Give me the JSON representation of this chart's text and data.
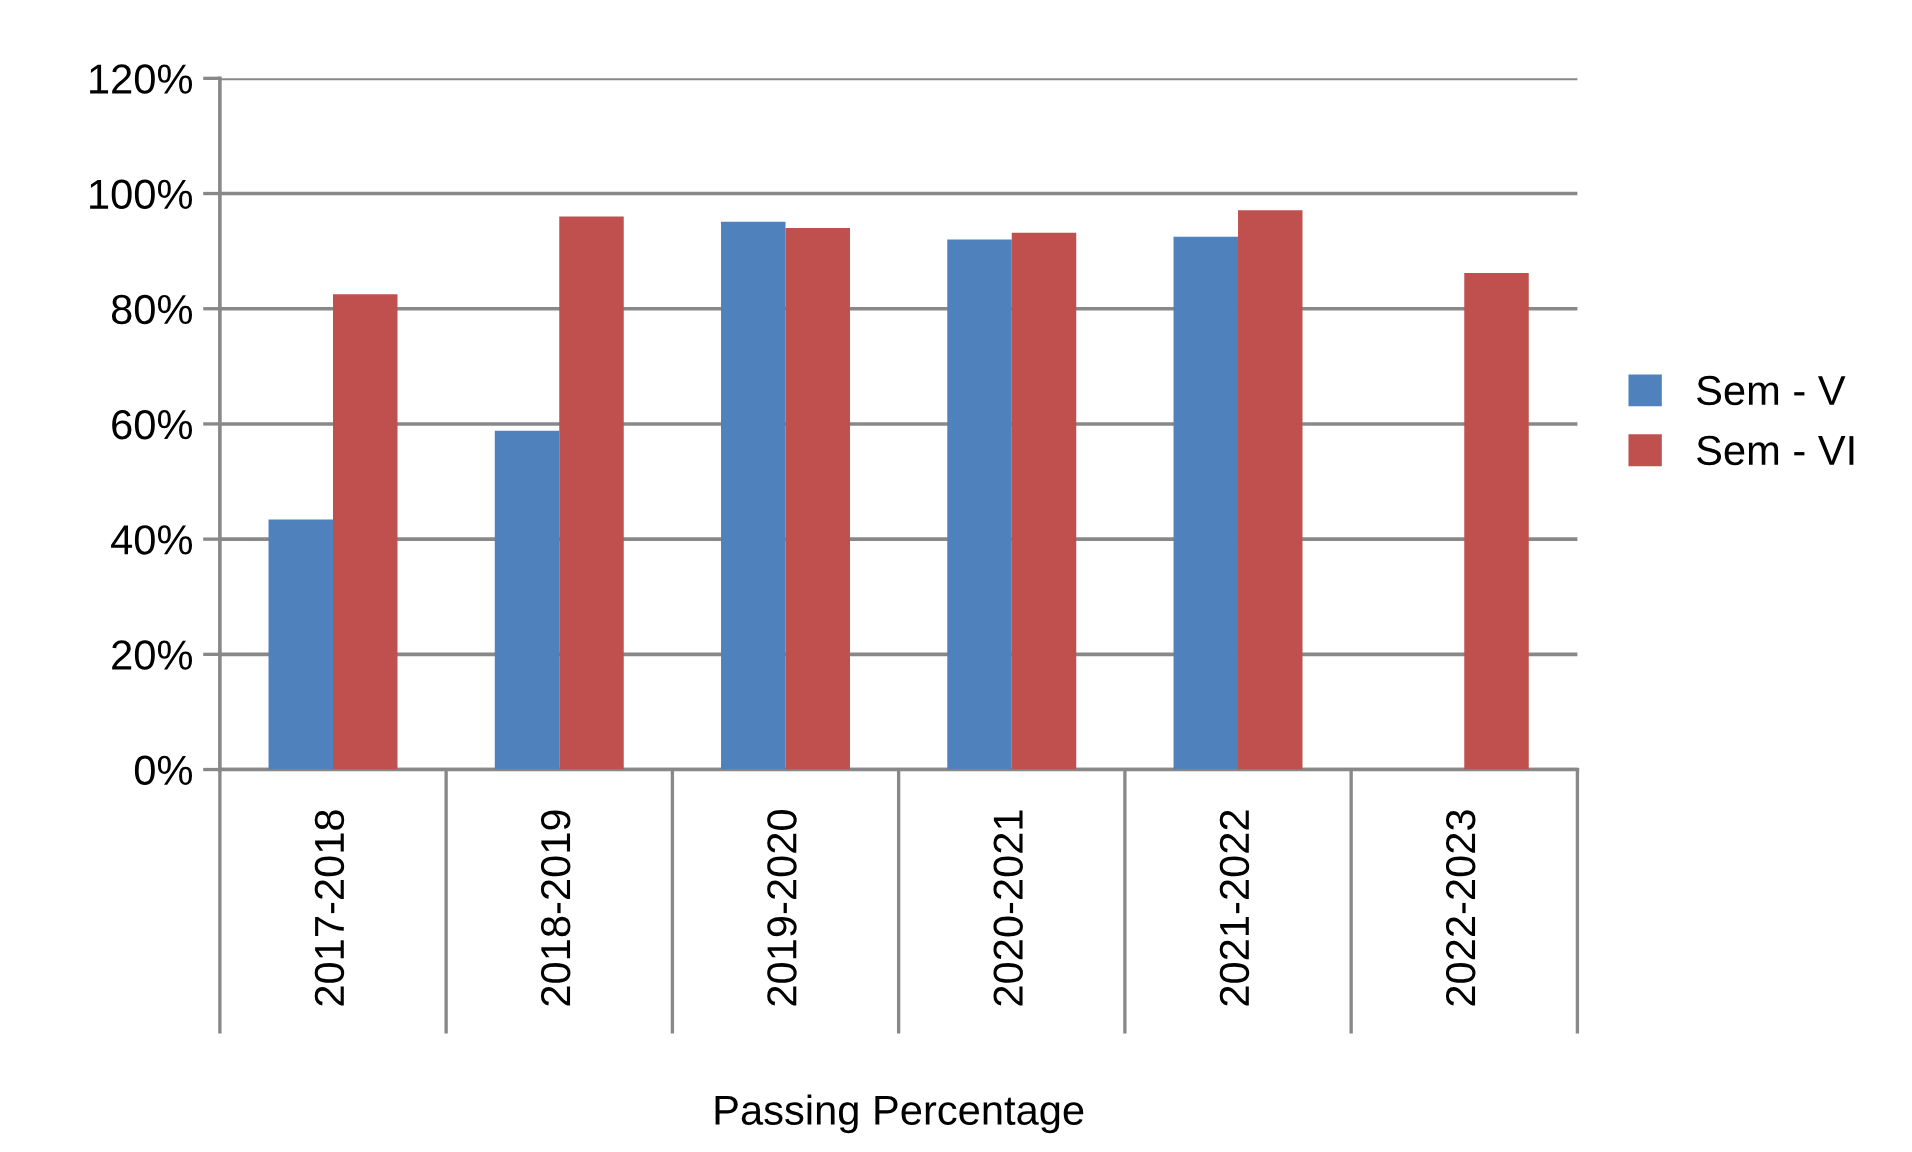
{
  "chart_data": {
    "type": "bar",
    "xlabel": "Passing Percentage",
    "categories": [
      "2017-2018",
      "2018-2019",
      "2019-2020",
      "2020-2021",
      "2021-2022",
      "2022-2023"
    ],
    "series": [
      {
        "name": "Sem - V",
        "color": "#4f81bd",
        "values": [
          43.4,
          58.8,
          95.1,
          92.0,
          92.5,
          null
        ]
      },
      {
        "name": "Sem - VI",
        "color": "#c0504d",
        "values": [
          82.5,
          96.0,
          94.0,
          93.2,
          97.1,
          86.2
        ]
      }
    ],
    "ylim": [
      0,
      120
    ],
    "yticks": [
      {
        "value": 0,
        "label": "0%"
      },
      {
        "value": 20,
        "label": "20%"
      },
      {
        "value": 40,
        "label": "40%"
      },
      {
        "value": 60,
        "label": "60%"
      },
      {
        "value": 80,
        "label": "80%"
      },
      {
        "value": 100,
        "label": "100%"
      },
      {
        "value": 120,
        "label": "120%"
      }
    ],
    "grid": "y",
    "legend": "right"
  }
}
